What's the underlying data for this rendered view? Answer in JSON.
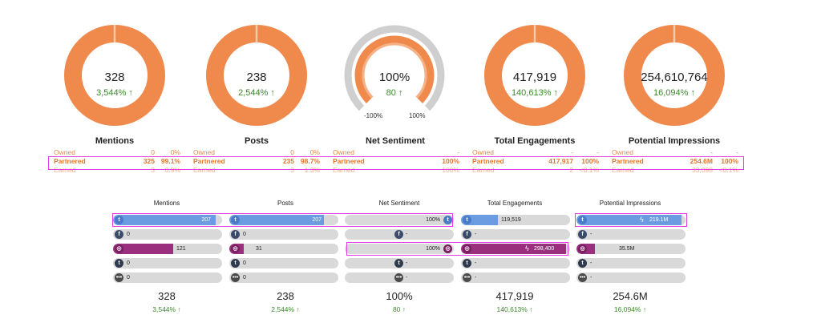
{
  "colors": {
    "orange": "#ef8a4c",
    "orange_light": "#f5b183",
    "gray": "#cfcfcf",
    "green": "#3a8a2a",
    "twitter": "#6b9be0",
    "instagram": "#9a2f7e",
    "highlight": "#e23ce0"
  },
  "top": [
    {
      "title": "Mentions",
      "value": "328",
      "growth": "3,544% ↑",
      "rows": {
        "owned": [
          "Owned",
          "0",
          "0%"
        ],
        "partnered": [
          "Partnered",
          "325",
          "99.1%"
        ],
        "earned": [
          "Earned",
          "3",
          "0.9%"
        ]
      }
    },
    {
      "title": "Posts",
      "value": "238",
      "growth": "2,544% ↑",
      "rows": {
        "owned": [
          "Owned",
          "0",
          "0%"
        ],
        "partnered": [
          "Partnered",
          "235",
          "98.7%"
        ],
        "earned": [
          "Earned",
          "3",
          "1.3%"
        ]
      }
    },
    {
      "title": "Net Sentiment",
      "value": "100%",
      "growth": "80 ↑",
      "gauge_min": "-100%",
      "gauge_max": "100%",
      "rows": {
        "owned": [
          "Owned",
          "",
          "-"
        ],
        "partnered": [
          "Partnered",
          "",
          "100%"
        ],
        "earned": [
          "Earned",
          "",
          "100%"
        ]
      }
    },
    {
      "title": "Total Engagements",
      "value": "417,919",
      "growth": "140,613% ↑",
      "rows": {
        "owned": [
          "Owned",
          "-",
          "-"
        ],
        "partnered": [
          "Partnered",
          "417,917",
          "100%"
        ],
        "earned": [
          "Earned",
          "2",
          "<0.1%"
        ]
      }
    },
    {
      "title": "Potential Impressions",
      "value": "254,610,764",
      "growth": "16,094% ↑",
      "rows": {
        "owned": [
          "Owned",
          "-",
          "-"
        ],
        "partnered": [
          "Partnered",
          "254.6M",
          "100%"
        ],
        "earned": [
          "Earned",
          "33,098",
          "<0.1%"
        ]
      }
    }
  ],
  "bottom": [
    {
      "title": "Mentions",
      "total": "328",
      "growth": "3,544% ↑",
      "bars": [
        {
          "network": "twitter",
          "value": "207",
          "fill": 0.94
        },
        {
          "network": "facebook",
          "value": "0",
          "fill": 0
        },
        {
          "network": "instagram",
          "value": "121",
          "fill": 0.55
        },
        {
          "network": "tumblr",
          "value": "0",
          "fill": 0
        },
        {
          "network": "other",
          "value": "0",
          "fill": 0
        }
      ]
    },
    {
      "title": "Posts",
      "total": "238",
      "growth": "2,544% ↑",
      "bars": [
        {
          "network": "twitter",
          "value": "207",
          "fill": 0.87
        },
        {
          "network": "facebook",
          "value": "0",
          "fill": 0
        },
        {
          "network": "instagram",
          "value": "31",
          "fill": 0.13
        },
        {
          "network": "tumblr",
          "value": "0",
          "fill": 0
        },
        {
          "network": "other",
          "value": "0",
          "fill": 0
        }
      ]
    },
    {
      "title": "Net Sentiment",
      "total": "100%",
      "growth": "80 ↑",
      "bars": [
        {
          "network": "twitter",
          "value": "100%",
          "fill": 0
        },
        {
          "network": "facebook",
          "value": "-",
          "fill": 0
        },
        {
          "network": "instagram",
          "value": "100%",
          "fill": 0
        },
        {
          "network": "tumblr",
          "value": "-",
          "fill": 0
        },
        {
          "network": "other",
          "value": "-",
          "fill": 0
        }
      ]
    },
    {
      "title": "Total Engagements",
      "total": "417,919",
      "growth": "140,613% ↑",
      "bars": [
        {
          "network": "twitter",
          "value": "119,519",
          "fill": 0.34
        },
        {
          "network": "facebook",
          "value": "-",
          "fill": 0
        },
        {
          "network": "instagram",
          "value": "298,400",
          "fill": 0.96
        },
        {
          "network": "tumblr",
          "value": "-",
          "fill": 0
        },
        {
          "network": "other",
          "value": "-",
          "fill": 0
        }
      ]
    },
    {
      "title": "Potential Impressions",
      "total": "254.6M",
      "growth": "16,094% ↑",
      "bars": [
        {
          "network": "twitter",
          "value": "219.1M",
          "fill": 0.96
        },
        {
          "network": "facebook",
          "value": "-",
          "fill": 0
        },
        {
          "network": "instagram",
          "value": "35.5M",
          "fill": 0.17
        },
        {
          "network": "tumblr",
          "value": "-",
          "fill": 0
        },
        {
          "network": "other",
          "value": "-",
          "fill": 0
        }
      ]
    }
  ]
}
